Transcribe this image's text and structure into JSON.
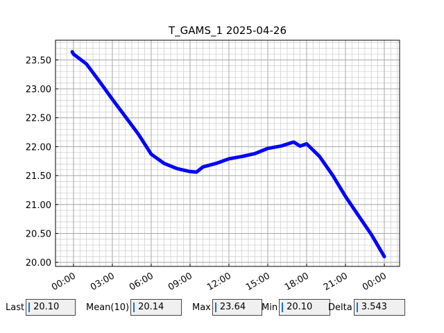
{
  "chart_data": {
    "type": "line",
    "title": "T_GAMS_1 2025-04-26",
    "x": [
      -0.1,
      0,
      1,
      2,
      3,
      4,
      5,
      6,
      7,
      8,
      9,
      9.5,
      10,
      11,
      12,
      13,
      14,
      15,
      16,
      17,
      17.5,
      18,
      19,
      20,
      21,
      22,
      23,
      24
    ],
    "series": [
      {
        "name": "T_GAMS_1",
        "color": "#0000ff",
        "values": [
          23.64,
          23.6,
          23.43,
          23.13,
          22.82,
          22.52,
          22.22,
          21.87,
          21.71,
          21.62,
          21.57,
          21.56,
          21.65,
          21.71,
          21.79,
          21.83,
          21.88,
          21.97,
          22.01,
          22.08,
          22.01,
          22.05,
          21.83,
          21.51,
          21.14,
          20.81,
          20.48,
          20.1
        ]
      }
    ],
    "xlim": [
      -1.39,
      25.18
    ],
    "xticks": [
      {
        "value": 0,
        "label": "00:00"
      },
      {
        "value": 3,
        "label": "03:00"
      },
      {
        "value": 6,
        "label": "06:00"
      },
      {
        "value": 9,
        "label": "09:00"
      },
      {
        "value": 12,
        "label": "12:00"
      },
      {
        "value": 15,
        "label": "15:00"
      },
      {
        "value": 18,
        "label": "18:00"
      },
      {
        "value": 21,
        "label": "21:00"
      },
      {
        "value": 24,
        "label": "00:00"
      }
    ],
    "ylim": [
      19.93,
      23.84
    ],
    "yticks": [
      {
        "value": 20,
        "label": "20.00"
      },
      {
        "value": 20.5,
        "label": "20.50"
      },
      {
        "value": 21,
        "label": "21.00"
      },
      {
        "value": 21.5,
        "label": "21.50"
      },
      {
        "value": 22,
        "label": "22.00"
      },
      {
        "value": 22.5,
        "label": "22.50"
      },
      {
        "value": 23,
        "label": "23.00"
      },
      {
        "value": 23.5,
        "label": "23.50"
      }
    ],
    "grid": true
  },
  "stats": [
    {
      "label": "Last",
      "value": "20.10"
    },
    {
      "label": "Mean(10)",
      "value": "20.14"
    },
    {
      "label": "Max",
      "value": "23.64"
    },
    {
      "label": "Min",
      "value": "20.10"
    },
    {
      "label": "Delta",
      "value": "3.543"
    }
  ]
}
